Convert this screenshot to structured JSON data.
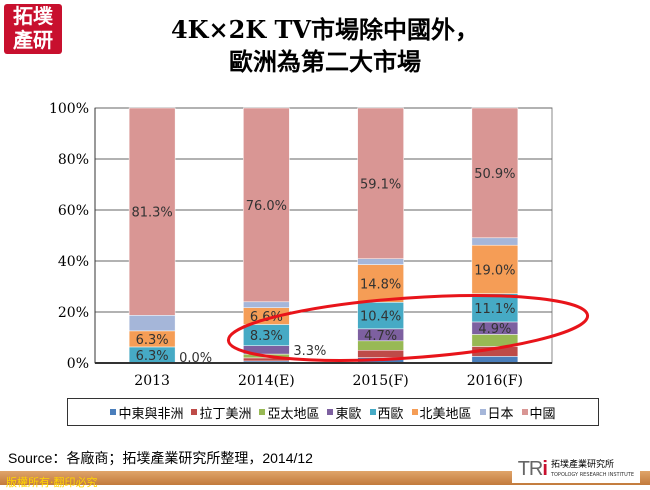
{
  "logo": {
    "text": "拓墣產研"
  },
  "title": {
    "line1": "4K×2K TV市場除中國外，",
    "line2": "歐洲為第二大市場"
  },
  "chart_data": {
    "type": "bar",
    "stacked": true,
    "percent": true,
    "categories": [
      "2013",
      "2014(E)",
      "2015(F)",
      "2016(F)"
    ],
    "ylim": [
      0,
      100
    ],
    "yticks": [
      "0%",
      "20%",
      "40%",
      "60%",
      "80%",
      "100%"
    ],
    "grid": true,
    "legend_position": "bottom",
    "series": [
      {
        "name": "中東與非洲",
        "color": "#4a7ebb",
        "values": [
          0.0,
          0.8,
          2.1,
          2.6
        ],
        "labels": [
          "",
          "",
          "",
          ""
        ]
      },
      {
        "name": "拉丁美洲",
        "color": "#be4b48",
        "values": [
          0.0,
          1.2,
          2.9,
          3.9
        ],
        "labels": [
          "",
          "",
          "",
          ""
        ]
      },
      {
        "name": "亞太地區",
        "color": "#98b954",
        "values": [
          0.0,
          1.5,
          3.7,
          4.7
        ],
        "labels": [
          "",
          "",
          "",
          ""
        ]
      },
      {
        "name": "東歐",
        "color": "#7d60a0",
        "values": [
          0.0,
          3.3,
          4.7,
          4.9
        ],
        "labels": [
          "0.0%",
          "3.3%",
          "4.7%",
          "4.9%"
        ]
      },
      {
        "name": "西歐",
        "color": "#46aac5",
        "values": [
          6.3,
          8.3,
          10.4,
          11.1
        ],
        "labels": [
          "6.3%",
          "8.3%",
          "10.4%",
          "11.1%"
        ]
      },
      {
        "name": "北美地區",
        "color": "#f59d56",
        "values": [
          6.3,
          6.6,
          14.8,
          19.0
        ],
        "labels": [
          "6.3%",
          "6.6%",
          "14.8%",
          "19.0%"
        ]
      },
      {
        "name": "日本",
        "color": "#a5b6d9",
        "values": [
          6.1,
          2.3,
          2.3,
          2.9
        ],
        "labels": [
          "",
          "",
          "",
          ""
        ]
      },
      {
        "name": "中國",
        "color": "#d99694",
        "values": [
          81.3,
          76.0,
          59.1,
          50.9
        ],
        "labels": [
          "81.3%",
          "76.0%",
          "59.1%",
          "50.9%"
        ]
      }
    ],
    "annotation": "red ellipse highlighting 東歐 and 西歐 segments for 2014(E)–2016(F)"
  },
  "source": "Source：各廠商；拓墣產業研究所整理，2014/12",
  "footer": {
    "copyright": "版權所有‧翻印必究"
  },
  "tri_logo": {
    "mark": "TRi",
    "name": "拓墣產業研究所",
    "english": "TOPOLOGY RESEARCH INSTITUTE"
  }
}
